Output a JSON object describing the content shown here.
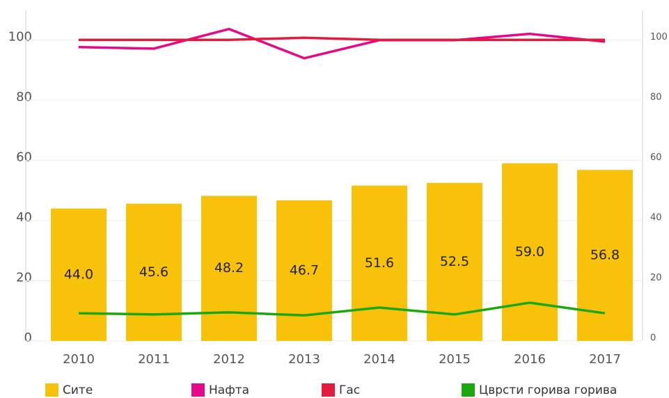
{
  "chart_data": {
    "type": "bar-line",
    "categories": [
      "2010",
      "2011",
      "2012",
      "2013",
      "2014",
      "2015",
      "2016",
      "2017"
    ],
    "ylim": [
      0,
      110
    ],
    "yticks": [
      0,
      20,
      40,
      60,
      80,
      100
    ],
    "y2lim": [
      0,
      110
    ],
    "y2ticks": [
      0,
      20,
      40,
      60,
      80,
      100
    ],
    "grid": true,
    "legend": "bottom",
    "series": [
      {
        "name": "Сите",
        "type": "bar",
        "color": "#f9c20a",
        "values": [
          44.0,
          45.6,
          48.2,
          46.7,
          51.6,
          52.5,
          59.0,
          56.8
        ],
        "value_labels": [
          "44.0",
          "45.6",
          "48.2",
          "46.7",
          "51.6",
          "52.5",
          "59.0",
          "56.8"
        ]
      },
      {
        "name": "Нафта",
        "type": "line",
        "axis": "y2",
        "color": "#e5098a",
        "values": [
          97.6,
          97.1,
          103.6,
          93.9,
          99.9,
          99.9,
          102.0,
          99.4
        ]
      },
      {
        "name": "Гас",
        "type": "line",
        "axis": "y2",
        "color": "#e21b3c",
        "values": [
          100,
          100,
          100,
          100.7,
          100,
          100,
          100,
          100
        ]
      },
      {
        "name": "Цврсти горива горива",
        "type": "line",
        "axis": "y2",
        "color": "#1aa80d",
        "values": [
          9.2,
          8.8,
          9.5,
          8.5,
          11.1,
          8.8,
          12.7,
          9.2
        ]
      }
    ]
  }
}
